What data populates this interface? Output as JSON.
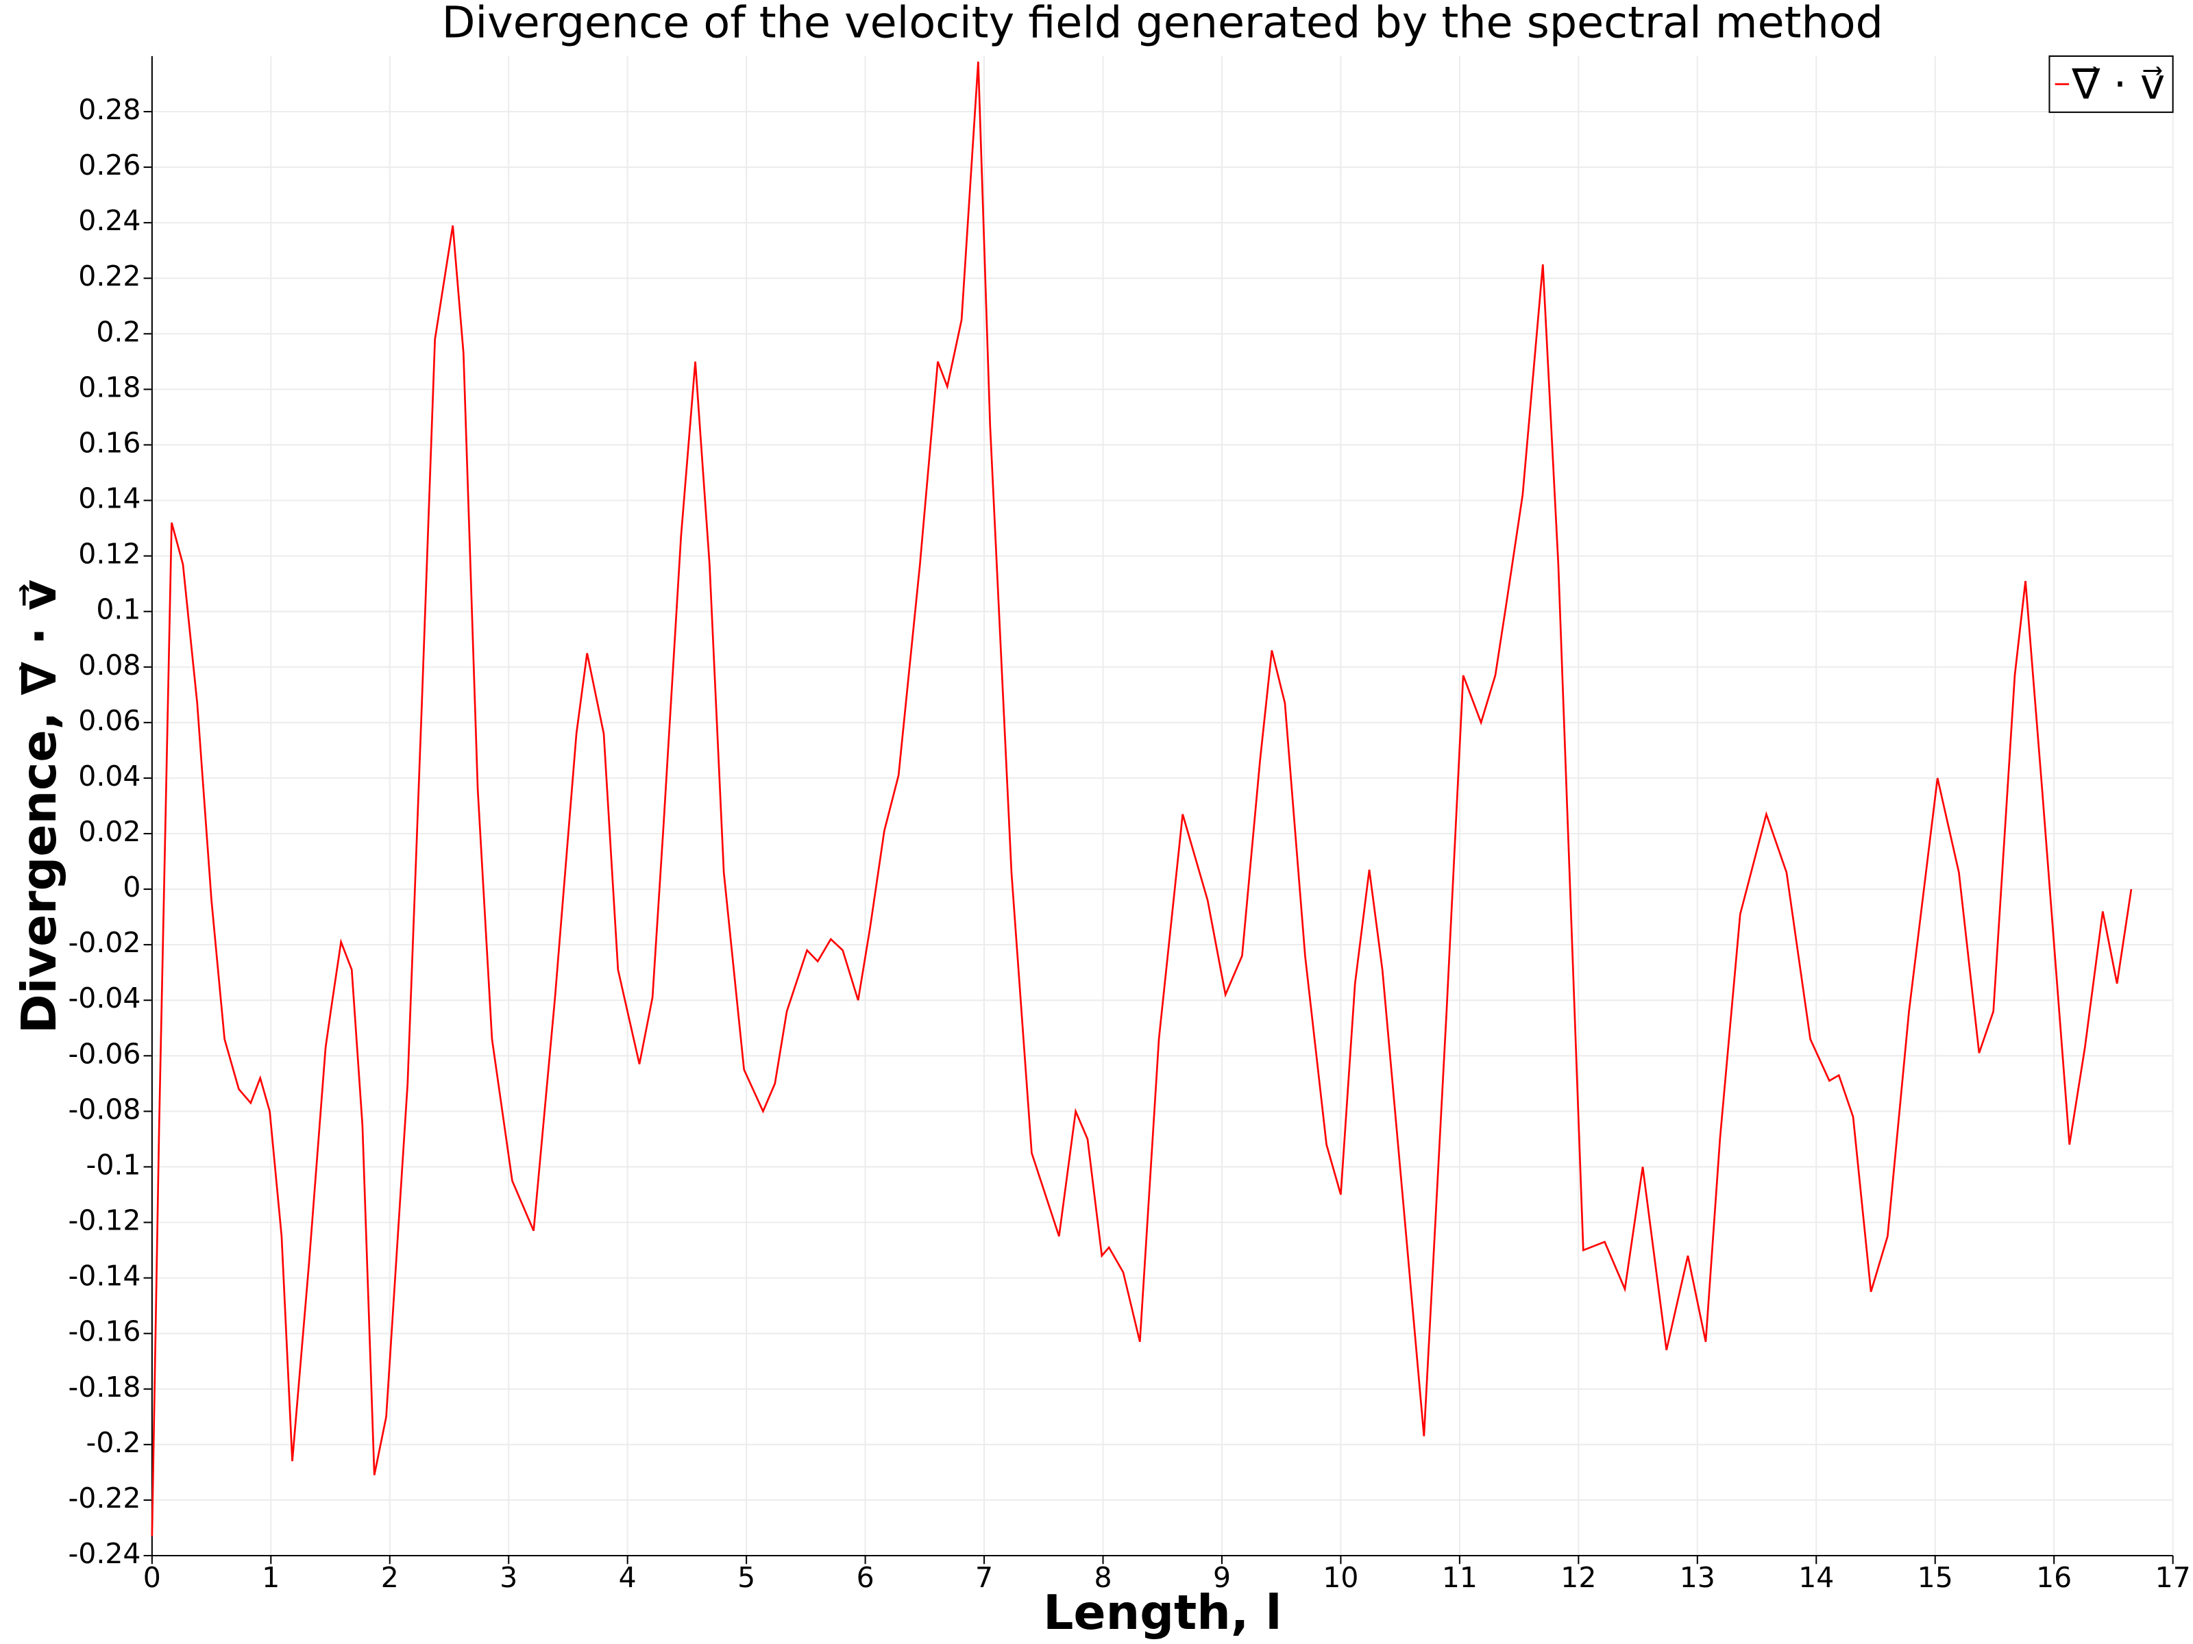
{
  "chart_data": {
    "type": "line",
    "title": "Divergence of the velocity field generated by the spectral method",
    "xlabel": "Length, l",
    "ylabel": "Divergence, ∇⃗ · v⃗",
    "legend": "upper right",
    "grid": true,
    "xlim": [
      0,
      17
    ],
    "ylim": [
      -0.24,
      0.3
    ],
    "xticks": [
      0,
      1,
      2,
      3,
      4,
      5,
      6,
      7,
      8,
      9,
      10,
      11,
      12,
      13,
      14,
      15,
      16,
      17
    ],
    "yticks": [
      -0.24,
      -0.22,
      -0.2,
      -0.18,
      -0.16,
      -0.14,
      -0.12,
      -0.1,
      -0.08,
      -0.06,
      -0.04,
      -0.02,
      0,
      0.02,
      0.04,
      0.06,
      0.08,
      0.1,
      0.12,
      0.14,
      0.16,
      0.18,
      0.2,
      0.22,
      0.24,
      0.26,
      0.28
    ],
    "x": [
      0,
      0.06,
      0.165,
      0.26,
      0.38,
      0.5,
      0.61,
      0.73,
      0.83,
      0.91,
      0.99,
      1.09,
      1.18,
      1.32,
      1.46,
      1.51,
      1.59,
      1.68,
      1.77,
      1.87,
      1.97,
      2.15,
      2.27,
      2.38,
      2.53,
      2.62,
      2.74,
      2.86,
      3.03,
      3.21,
      3.39,
      3.57,
      3.66,
      3.8,
      3.92,
      4.1,
      4.21,
      4.3,
      4.45,
      4.57,
      4.69,
      4.81,
      4.98,
      5.14,
      5.24,
      5.34,
      5.51,
      5.6,
      5.71,
      5.81,
      5.94,
      6.04,
      6.16,
      6.28,
      6.46,
      6.61,
      6.69,
      6.81,
      6.95,
      7.05,
      7.23,
      7.4,
      7.63,
      7.77,
      7.87,
      7.99,
      8.05,
      8.17,
      8.31,
      8.47,
      8.67,
      8.88,
      9.03,
      9.17,
      9.32,
      9.42,
      9.53,
      9.7,
      9.88,
      10.0,
      10.12,
      10.24,
      10.35,
      10.53,
      10.7,
      10.89,
      11.03,
      11.18,
      11.3,
      11.39,
      11.53,
      11.7,
      11.83,
      12.04,
      12.22,
      12.39,
      12.54,
      12.74,
      12.92,
      13.07,
      13.19,
      13.36,
      13.58,
      13.75,
      13.95,
      14.11,
      14.19,
      14.31,
      14.46,
      14.6,
      14.78,
      15.02,
      15.2,
      15.37,
      15.49,
      15.67,
      15.76,
      15.9,
      16.13,
      16.26,
      16.41,
      16.53,
      16.65
    ],
    "series": [
      {
        "name": "∇⃗ · v⃗",
        "color": "#ff0000",
        "values": [
          -0.233,
          -0.085,
          0.132,
          0.117,
          0.067,
          -0.004,
          -0.054,
          -0.072,
          -0.077,
          -0.068,
          -0.08,
          -0.125,
          -0.206,
          -0.135,
          -0.057,
          -0.042,
          -0.019,
          -0.029,
          -0.085,
          -0.211,
          -0.19,
          -0.07,
          0.067,
          0.198,
          0.239,
          0.193,
          0.036,
          -0.054,
          -0.105,
          -0.123,
          -0.039,
          0.056,
          0.085,
          0.056,
          -0.029,
          -0.063,
          -0.039,
          0.021,
          0.127,
          0.19,
          0.117,
          0.006,
          -0.065,
          -0.08,
          -0.07,
          -0.044,
          -0.022,
          -0.026,
          -0.018,
          -0.022,
          -0.04,
          -0.014,
          0.021,
          0.041,
          0.117,
          0.19,
          0.181,
          0.205,
          0.298,
          0.167,
          0.006,
          -0.095,
          -0.125,
          -0.08,
          -0.09,
          -0.132,
          -0.129,
          -0.138,
          -0.163,
          -0.054,
          0.027,
          -0.004,
          -0.038,
          -0.024,
          0.046,
          0.086,
          0.067,
          -0.024,
          -0.092,
          -0.11,
          -0.034,
          0.007,
          -0.029,
          -0.115,
          -0.197,
          -0.044,
          0.077,
          0.06,
          0.077,
          0.102,
          0.142,
          0.225,
          0.117,
          -0.13,
          -0.127,
          -0.144,
          -0.1,
          -0.166,
          -0.132,
          -0.163,
          -0.09,
          -0.009,
          0.027,
          0.006,
          -0.054,
          -0.069,
          -0.067,
          -0.082,
          -0.145,
          -0.125,
          -0.044,
          0.04,
          0.006,
          -0.059,
          -0.044,
          0.077,
          0.111,
          0.036,
          -0.092,
          -0.057,
          -0.008,
          -0.034,
          0
        ]
      }
    ]
  }
}
